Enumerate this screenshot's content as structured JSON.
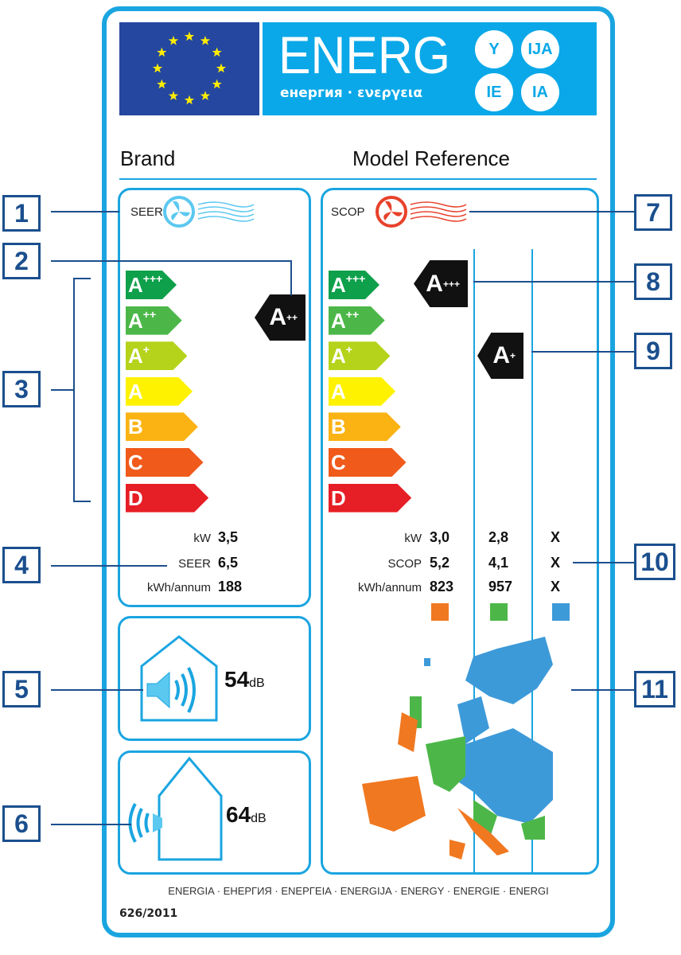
{
  "header": {
    "energ": "ENERG",
    "subtitle": "енергия · ενεργεια",
    "suffixes": [
      "Y",
      "IJA",
      "IE",
      "IA"
    ],
    "brand": "Brand",
    "model": "Model Reference"
  },
  "cooling": {
    "metric": "SEER",
    "icon": "fan-cool-icon",
    "rating": "A",
    "rating_sup": "++",
    "kw_label": "kW",
    "kw": "3,5",
    "seer_label": "SEER",
    "seer": "6,5",
    "kwh_label": "kWh/annum",
    "kwh": "188"
  },
  "classes": [
    {
      "l": "A",
      "s": "+++",
      "color": "#0ea04b"
    },
    {
      "l": "A",
      "s": "++",
      "color": "#4cb748"
    },
    {
      "l": "A",
      "s": "+",
      "color": "#b5d31b"
    },
    {
      "l": "A",
      "s": "",
      "color": "#fff200"
    },
    {
      "l": "B",
      "s": "",
      "color": "#fbb314"
    },
    {
      "l": "C",
      "s": "",
      "color": "#f05a1b"
    },
    {
      "l": "D",
      "s": "",
      "color": "#e61e25"
    }
  ],
  "heating": {
    "metric": "SCOP",
    "icon": "fan-heat-icon",
    "ratings": [
      {
        "l": "A",
        "s": "+++"
      },
      {
        "l": "A",
        "s": "+"
      }
    ],
    "kw_label": "kW",
    "scop_label": "SCOP",
    "kwh_label": "kWh/annum",
    "columns": [
      {
        "kw": "3,0",
        "scop": "5,2",
        "kwh": "823",
        "color": "#f07820"
      },
      {
        "kw": "2,8",
        "scop": "4,1",
        "kwh": "957",
        "color": "#4cb748"
      },
      {
        "kw": "X",
        "scop": "X",
        "kwh": "X",
        "color": "#3d9ad9"
      }
    ]
  },
  "noise": {
    "indoor": "54",
    "outdoor": "64",
    "unit": "dB"
  },
  "footer": {
    "languages": "ENERGIA · ЕНЕРГИЯ · ΕΝΕΡΓΕΙΑ · ENERGIJA · ENERGY · ENERGIE · ENERGI",
    "regulation": "626/2011"
  },
  "callouts": [
    "1",
    "2",
    "3",
    "4",
    "5",
    "6",
    "7",
    "8",
    "9",
    "10",
    "11"
  ],
  "colors": {
    "frame": "#1aa5e0",
    "callout": "#1b4f8e",
    "flag": "#2547a0",
    "banner": "#0aa8e8"
  }
}
